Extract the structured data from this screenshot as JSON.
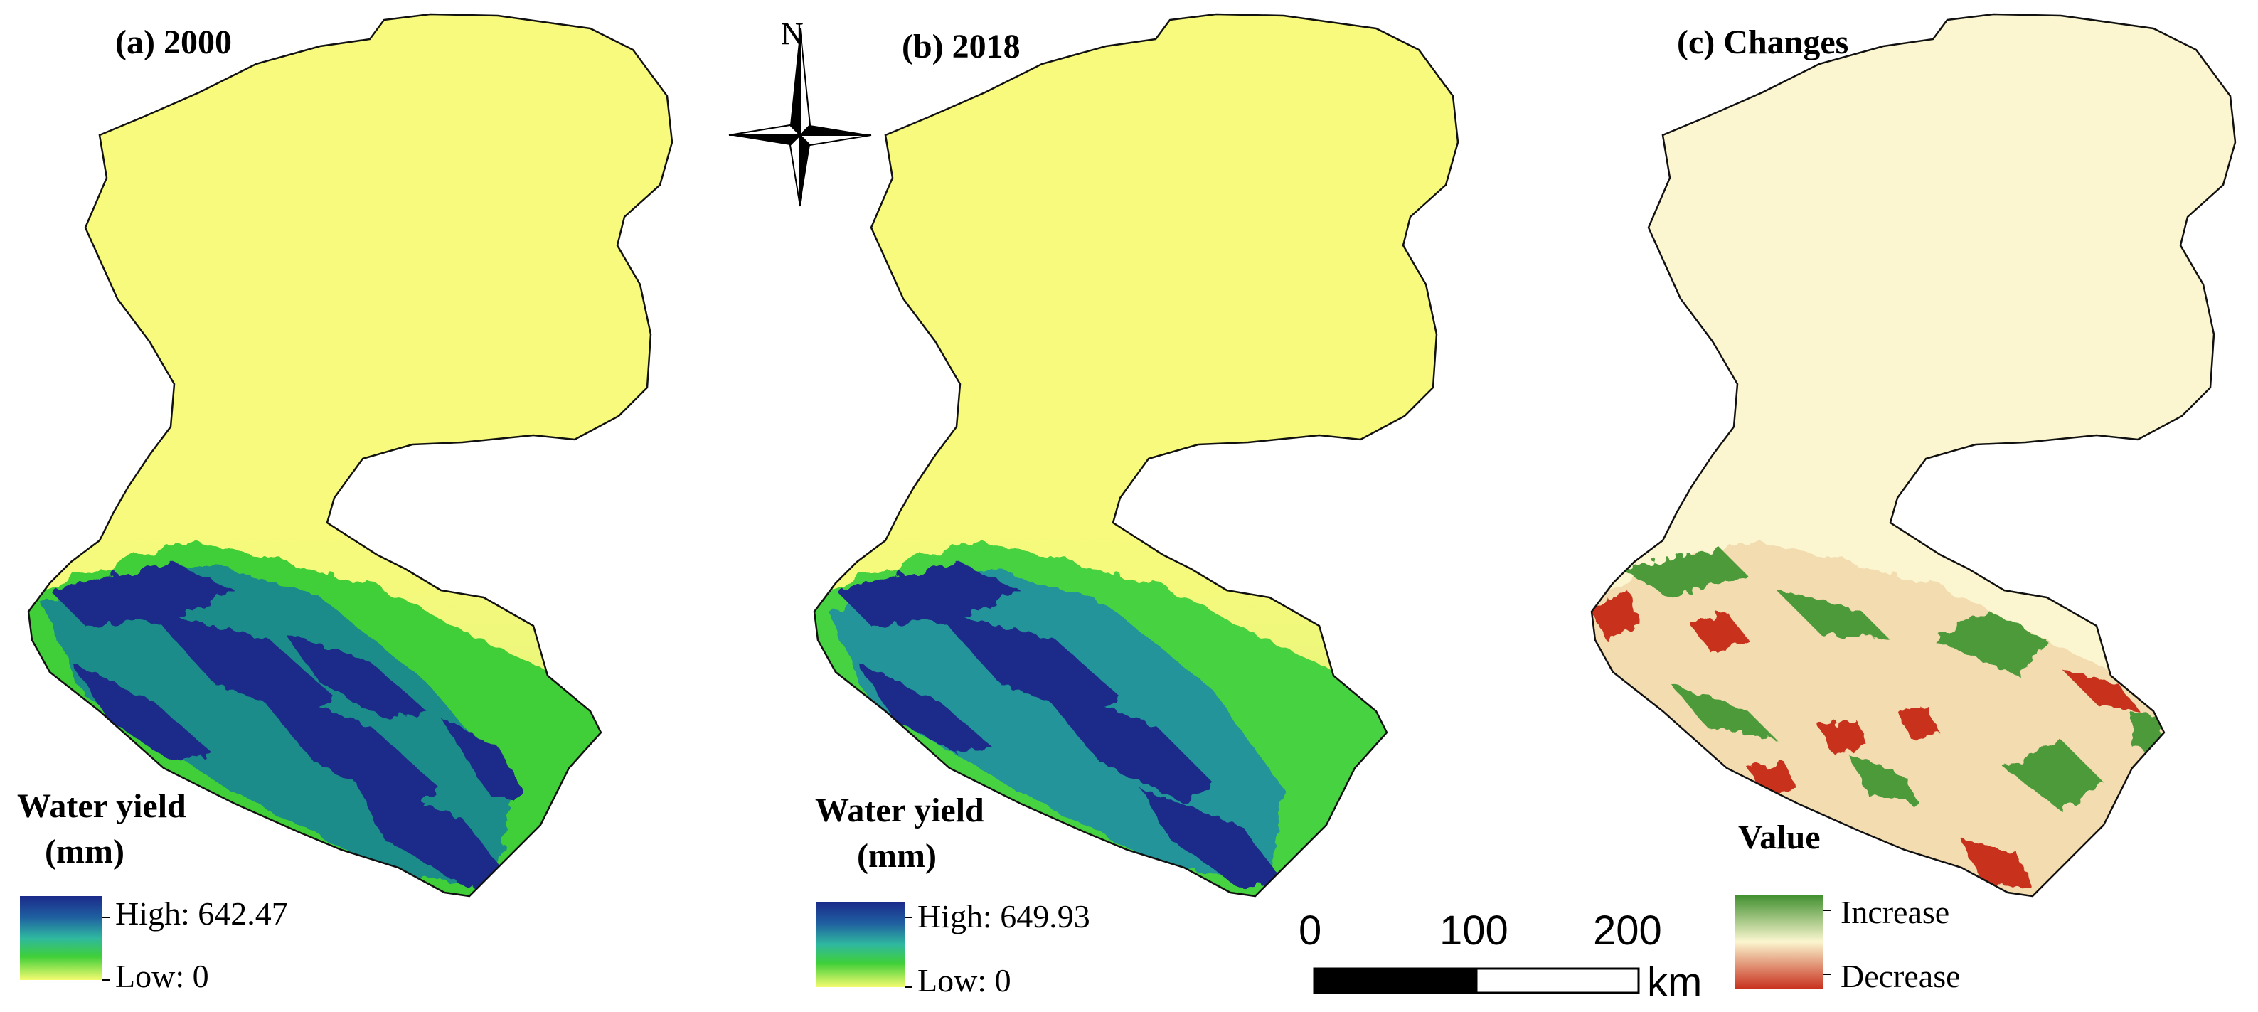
{
  "panels": [
    {
      "title": "(a) 2000",
      "legend_title_line1": "Water yield",
      "legend_title_line2": "(mm)",
      "high_label": "High: 642.47",
      "low_label": "Low: 0"
    },
    {
      "title": "(b) 2018",
      "legend_title_line1": "Water yield",
      "legend_title_line2": "(mm)",
      "high_label": "High: 649.93",
      "low_label": "Low: 0"
    },
    {
      "title": "(c) Changes",
      "legend_title": "Value",
      "increase_label": "Increase",
      "decrease_label": "Decrease"
    }
  ],
  "north_arrow": {
    "label": "N"
  },
  "scale_bar": {
    "ticks": [
      "0",
      "100",
      "200"
    ],
    "unit": "km"
  },
  "colors": {
    "water_yield_low": "#f7fa7c",
    "water_yield_mid": "#3fcf38",
    "water_yield_high": "#1b2a8a",
    "change_increase": "#3f8f2e",
    "change_neutral": "#fbf6cf",
    "change_decrease": "#c8321f"
  }
}
